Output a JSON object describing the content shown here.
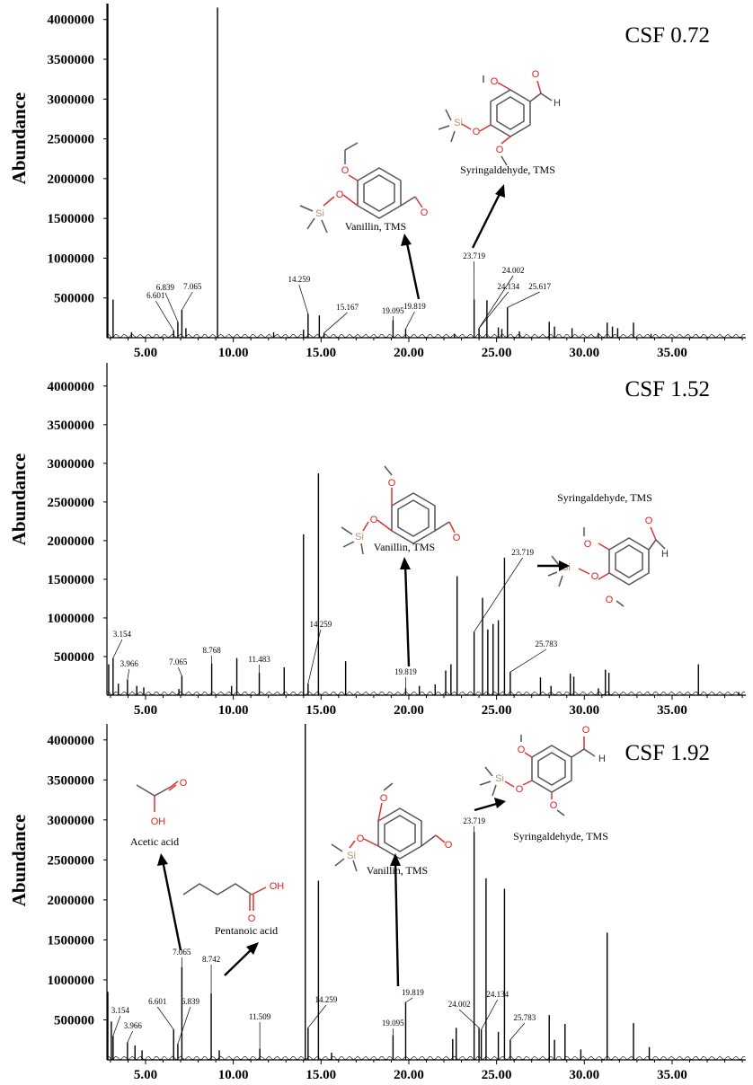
{
  "chart_data": [
    {
      "type": "line",
      "title": "CSF 0.72",
      "ylabel": "Abundance",
      "xlabel": "",
      "xlim": [
        2.8,
        39.2
      ],
      "ylim": [
        0,
        4200000
      ],
      "xticks": [
        5,
        10,
        15,
        20,
        25,
        30,
        35
      ],
      "xtick_labels": [
        "5.00",
        "10.00",
        "15.00",
        "20.00",
        "25.00",
        "30.00",
        "35.00"
      ],
      "yticks": [
        500000,
        1000000,
        1500000,
        2000000,
        2500000,
        3000000,
        3500000,
        4000000
      ],
      "ytick_labels": [
        "500000",
        "1000000",
        "1500000",
        "2000000",
        "2500000",
        "3000000",
        "3500000",
        "4000000"
      ],
      "peaks": [
        {
          "x": 2.85,
          "y": 4200000
        },
        {
          "x": 3.15,
          "y": 480000
        },
        {
          "x": 4.2,
          "y": 70000
        },
        {
          "x": 6.6,
          "y": 90000
        },
        {
          "x": 6.84,
          "y": 200000
        },
        {
          "x": 7.07,
          "y": 350000
        },
        {
          "x": 7.3,
          "y": 120000
        },
        {
          "x": 9.1,
          "y": 4150000
        },
        {
          "x": 12.3,
          "y": 70000
        },
        {
          "x": 14.26,
          "y": 300000
        },
        {
          "x": 14.0,
          "y": 100000
        },
        {
          "x": 14.9,
          "y": 280000
        },
        {
          "x": 15.17,
          "y": 60000
        },
        {
          "x": 19.1,
          "y": 220000
        },
        {
          "x": 19.82,
          "y": 110000
        },
        {
          "x": 22.6,
          "y": 50000
        },
        {
          "x": 23.72,
          "y": 480000
        },
        {
          "x": 24.0,
          "y": 120000
        },
        {
          "x": 24.45,
          "y": 470000
        },
        {
          "x": 25.1,
          "y": 130000
        },
        {
          "x": 25.62,
          "y": 380000
        },
        {
          "x": 25.3,
          "y": 110000
        },
        {
          "x": 26.3,
          "y": 80000
        },
        {
          "x": 28.0,
          "y": 200000
        },
        {
          "x": 28.3,
          "y": 140000
        },
        {
          "x": 29.3,
          "y": 120000
        },
        {
          "x": 30.8,
          "y": 60000
        },
        {
          "x": 31.3,
          "y": 190000
        },
        {
          "x": 31.6,
          "y": 140000
        },
        {
          "x": 31.9,
          "y": 120000
        },
        {
          "x": 32.8,
          "y": 190000
        },
        {
          "x": 33.8,
          "y": 50000
        }
      ],
      "annotations": [
        {
          "text": "6.601",
          "x": 6.601
        },
        {
          "text": "6.839",
          "x": 6.839
        },
        {
          "text": "7.065",
          "x": 7.065
        },
        {
          "text": "14.259",
          "x": 14.259
        },
        {
          "text": "15.167",
          "x": 15.167
        },
        {
          "text": "19.095",
          "x": 19.095
        },
        {
          "text": "19.819",
          "x": 19.819
        },
        {
          "text": "23.719",
          "x": 23.719
        },
        {
          "text": "24.002",
          "x": 24.002
        },
        {
          "text": "24.134",
          "x": 24.134
        },
        {
          "text": "25.617",
          "x": 25.617
        }
      ],
      "compounds": [
        "Vanillin,  TMS",
        "Syringaldehyde, TMS"
      ]
    },
    {
      "type": "line",
      "title": "CSF 1.52",
      "ylabel": "Abundance",
      "xlabel": "",
      "xlim": [
        2.8,
        39.2
      ],
      "ylim": [
        0,
        4300000
      ],
      "xticks": [
        5,
        10,
        15,
        20,
        25,
        30,
        35
      ],
      "xtick_labels": [
        "5.00",
        "10.00",
        "15.00",
        "20.00",
        "25.00",
        "30.00",
        "35.00"
      ],
      "yticks": [
        500000,
        1000000,
        1500000,
        2000000,
        2500000,
        3000000,
        3500000,
        4000000
      ],
      "ytick_labels": [
        "500000",
        "1000000",
        "1500000",
        "2000000",
        "2500000",
        "3000000",
        "3500000",
        "4000000"
      ],
      "peaks": [
        {
          "x": 2.9,
          "y": 400000
        },
        {
          "x": 3.15,
          "y": 480000
        },
        {
          "x": 3.45,
          "y": 150000
        },
        {
          "x": 3.97,
          "y": 200000
        },
        {
          "x": 4.5,
          "y": 120000
        },
        {
          "x": 4.9,
          "y": 100000
        },
        {
          "x": 6.9,
          "y": 80000
        },
        {
          "x": 7.07,
          "y": 250000
        },
        {
          "x": 8.77,
          "y": 410000
        },
        {
          "x": 9.9,
          "y": 120000
        },
        {
          "x": 10.2,
          "y": 480000
        },
        {
          "x": 11.48,
          "y": 290000
        },
        {
          "x": 12.9,
          "y": 360000
        },
        {
          "x": 14.0,
          "y": 2080000
        },
        {
          "x": 14.26,
          "y": 150000
        },
        {
          "x": 14.85,
          "y": 2870000
        },
        {
          "x": 16.4,
          "y": 440000
        },
        {
          "x": 19.82,
          "y": 90000
        },
        {
          "x": 20.6,
          "y": 120000
        },
        {
          "x": 21.5,
          "y": 140000
        },
        {
          "x": 22.1,
          "y": 320000
        },
        {
          "x": 22.4,
          "y": 400000
        },
        {
          "x": 22.75,
          "y": 1540000
        },
        {
          "x": 23.72,
          "y": 820000
        },
        {
          "x": 24.2,
          "y": 1260000
        },
        {
          "x": 24.5,
          "y": 850000
        },
        {
          "x": 24.8,
          "y": 920000
        },
        {
          "x": 25.1,
          "y": 970000
        },
        {
          "x": 25.45,
          "y": 1780000
        },
        {
          "x": 25.78,
          "y": 300000
        },
        {
          "x": 27.5,
          "y": 230000
        },
        {
          "x": 28.1,
          "y": 120000
        },
        {
          "x": 29.2,
          "y": 280000
        },
        {
          "x": 29.4,
          "y": 240000
        },
        {
          "x": 30.8,
          "y": 90000
        },
        {
          "x": 31.2,
          "y": 330000
        },
        {
          "x": 31.4,
          "y": 290000
        },
        {
          "x": 36.5,
          "y": 400000
        },
        {
          "x": 38.8,
          "y": 40000
        }
      ],
      "annotations": [
        {
          "text": "3.154",
          "x": 3.154
        },
        {
          "text": "3.966",
          "x": 3.966
        },
        {
          "text": "7.065",
          "x": 7.065
        },
        {
          "text": "8.768",
          "x": 8.768
        },
        {
          "text": "11.483",
          "x": 11.483
        },
        {
          "text": "14.259",
          "x": 14.259
        },
        {
          "text": "19.819",
          "x": 19.819
        },
        {
          "text": "23.719",
          "x": 23.719
        },
        {
          "text": "25.783",
          "x": 25.783
        }
      ],
      "compounds": [
        "Vanillin,  TMS",
        "Syringaldehyde, TMS"
      ]
    },
    {
      "type": "line",
      "title": "CSF 1.92",
      "ylabel": "Abundance",
      "xlabel": "",
      "xlim": [
        2.8,
        39.2
      ],
      "ylim": [
        0,
        4200000
      ],
      "xticks": [
        5,
        10,
        15,
        20,
        25,
        30,
        35
      ],
      "xtick_labels": [
        "5.00",
        "10.00",
        "15.00",
        "20.00",
        "25.00",
        "30.00",
        "35.00"
      ],
      "yticks": [
        500000,
        1000000,
        1500000,
        2000000,
        2500000,
        3000000,
        3500000,
        4000000
      ],
      "ytick_labels": [
        "500000",
        "1000000",
        "1500000",
        "2000000",
        "2500000",
        "3000000",
        "3500000",
        "4000000"
      ],
      "peaks": [
        {
          "x": 2.85,
          "y": 850000
        },
        {
          "x": 3.05,
          "y": 480000
        },
        {
          "x": 3.15,
          "y": 300000
        },
        {
          "x": 3.97,
          "y": 220000
        },
        {
          "x": 4.4,
          "y": 180000
        },
        {
          "x": 4.8,
          "y": 120000
        },
        {
          "x": 6.6,
          "y": 380000
        },
        {
          "x": 6.84,
          "y": 200000
        },
        {
          "x": 7.07,
          "y": 1160000
        },
        {
          "x": 8.74,
          "y": 830000
        },
        {
          "x": 9.2,
          "y": 120000
        },
        {
          "x": 11.51,
          "y": 140000
        },
        {
          "x": 14.1,
          "y": 4200000
        },
        {
          "x": 14.26,
          "y": 400000
        },
        {
          "x": 14.85,
          "y": 2240000
        },
        {
          "x": 15.6,
          "y": 90000
        },
        {
          "x": 19.1,
          "y": 310000
        },
        {
          "x": 19.82,
          "y": 720000
        },
        {
          "x": 22.5,
          "y": 260000
        },
        {
          "x": 22.7,
          "y": 400000
        },
        {
          "x": 23.72,
          "y": 2850000
        },
        {
          "x": 24.0,
          "y": 400000
        },
        {
          "x": 24.13,
          "y": 380000
        },
        {
          "x": 24.4,
          "y": 2270000
        },
        {
          "x": 25.1,
          "y": 350000
        },
        {
          "x": 25.45,
          "y": 2140000
        },
        {
          "x": 25.78,
          "y": 250000
        },
        {
          "x": 28.0,
          "y": 560000
        },
        {
          "x": 28.3,
          "y": 250000
        },
        {
          "x": 28.9,
          "y": 450000
        },
        {
          "x": 29.8,
          "y": 130000
        },
        {
          "x": 31.3,
          "y": 1590000
        },
        {
          "x": 32.8,
          "y": 460000
        },
        {
          "x": 33.7,
          "y": 160000
        }
      ],
      "annotations": [
        {
          "text": "3.154",
          "x": 3.154
        },
        {
          "text": "3.966",
          "x": 3.966
        },
        {
          "text": "6.601",
          "x": 6.601
        },
        {
          "text": "6.839",
          "x": 6.839
        },
        {
          "text": "7.065",
          "x": 7.065
        },
        {
          "text": "8.742",
          "x": 8.742
        },
        {
          "text": "11.509",
          "x": 11.509
        },
        {
          "text": "14.259",
          "x": 14.259
        },
        {
          "text": "19.095",
          "x": 19.095
        },
        {
          "text": "19.819",
          "x": 19.819
        },
        {
          "text": "23.719",
          "x": 23.719
        },
        {
          "text": "24.002",
          "x": 24.002
        },
        {
          "text": "24.134",
          "x": 24.134
        },
        {
          "text": "25.783",
          "x": 25.783
        }
      ],
      "compounds": [
        "Acetic acid",
        "Pentanoic acid",
        "Vanillin,  TMS",
        "Syringaldehyde, TMS"
      ]
    }
  ],
  "atoms": {
    "o": "O",
    "oh": "OH",
    "si": "Si",
    "h": "H"
  },
  "colors": {
    "trace": "#000000",
    "baseline_marks": "#cc2222",
    "oxygen": "#e02020",
    "silicon": "#b59070"
  }
}
